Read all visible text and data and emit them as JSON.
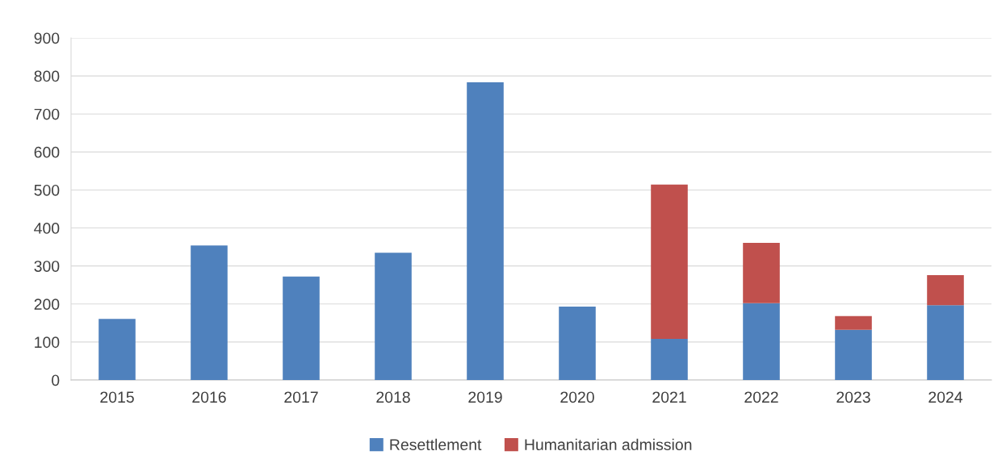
{
  "chart_data": {
    "type": "bar",
    "stacked": true,
    "categories": [
      "2015",
      "2016",
      "2017",
      "2018",
      "2019",
      "2020",
      "2021",
      "2022",
      "2023",
      "2024"
    ],
    "series": [
      {
        "name": "Resettlement",
        "color": "#4f81bd",
        "values": [
          161,
          354,
          272,
          335,
          783,
          193,
          108,
          202,
          132,
          197
        ]
      },
      {
        "name": "Humanitarian admission",
        "color": "#c0504d",
        "values": [
          null,
          null,
          null,
          null,
          null,
          null,
          406,
          159,
          36,
          79
        ]
      }
    ],
    "ylim": [
      0,
      900
    ],
    "yticks": [
      0,
      100,
      200,
      300,
      400,
      500,
      600,
      700,
      800,
      900
    ],
    "grid": "y",
    "legend": "bottom"
  }
}
